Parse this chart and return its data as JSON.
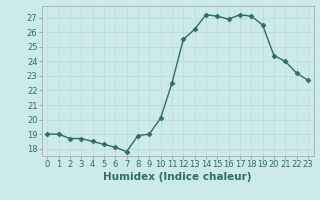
{
  "x": [
    0,
    1,
    2,
    3,
    4,
    5,
    6,
    7,
    8,
    9,
    10,
    11,
    12,
    13,
    14,
    15,
    16,
    17,
    18,
    19,
    20,
    21,
    22,
    23
  ],
  "y": [
    19.0,
    19.0,
    18.7,
    18.7,
    18.5,
    18.3,
    18.1,
    17.8,
    18.9,
    19.0,
    20.1,
    22.5,
    25.5,
    26.2,
    27.2,
    27.1,
    26.9,
    27.2,
    27.1,
    26.5,
    24.4,
    24.0,
    23.2,
    22.7
  ],
  "line_color": "#2e6e68",
  "marker": "D",
  "markersize": 2.5,
  "linewidth": 1.0,
  "bg_color": "#cceaea",
  "grid_color": "#c0d8d8",
  "xlabel": "Humidex (Indice chaleur)",
  "xlim": [
    -0.5,
    23.5
  ],
  "ylim": [
    17.5,
    27.8
  ],
  "yticks": [
    18,
    19,
    20,
    21,
    22,
    23,
    24,
    25,
    26,
    27
  ],
  "xticks": [
    0,
    1,
    2,
    3,
    4,
    5,
    6,
    7,
    8,
    9,
    10,
    11,
    12,
    13,
    14,
    15,
    16,
    17,
    18,
    19,
    20,
    21,
    22,
    23
  ],
  "tick_label_fontsize": 6.0,
  "xlabel_fontsize": 7.5,
  "tick_color": "#2e6e68",
  "spine_color": "#aaaaaa"
}
